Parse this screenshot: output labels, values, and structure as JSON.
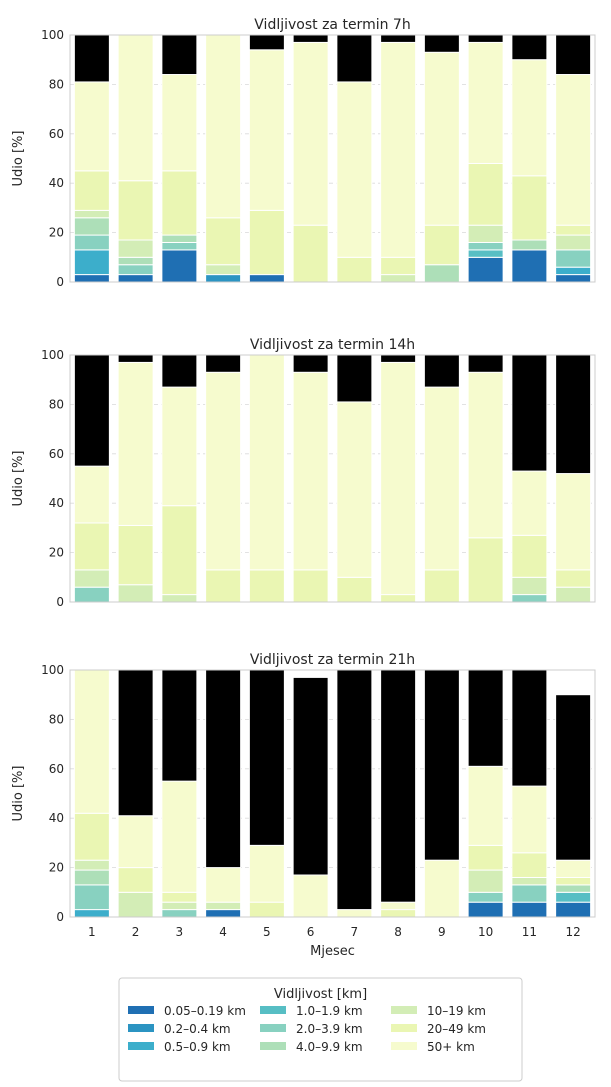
{
  "chart_data": {
    "type": "bar",
    "stacked": true,
    "xlabel": "Mjesec",
    "ylabel": "Udio [%]",
    "categories": [
      "1",
      "2",
      "3",
      "4",
      "5",
      "6",
      "7",
      "8",
      "9",
      "10",
      "11",
      "12"
    ],
    "ylim": [
      0,
      100
    ],
    "yticks": [
      0,
      20,
      40,
      60,
      80,
      100
    ],
    "grid": "horizontal dashed",
    "legend": {
      "title": "Vidljivost [km]",
      "placement": "bottom-center",
      "columns": 3,
      "entries": [
        "0.05–0.19 km",
        "0.2–0.4 km",
        "0.5–0.9 km",
        "1.0–1.9 km",
        "2.0–3.9 km",
        "4.0–9.9 km",
        "10–19 km",
        "20–49 km",
        "50+ km"
      ]
    },
    "colors": [
      "#1f6fb3",
      "#2b94c2",
      "#3caecb",
      "#57bec4",
      "#88d1c0",
      "#addfb8",
      "#d3edb6",
      "#eaf6b3",
      "#f6fbce"
    ],
    "panels": [
      {
        "title": "Vidljivost za termin 7h",
        "bounds": [
          [
            3,
            3,
            13,
            13,
            19,
            26,
            29,
            45,
            81,
            100
          ],
          [
            3,
            3,
            3,
            3,
            7,
            10,
            17,
            41,
            100,
            100
          ],
          [
            13,
            13,
            13,
            13,
            16,
            19,
            19,
            45,
            84,
            100
          ],
          [
            0,
            3,
            3,
            3,
            3,
            3,
            7,
            26,
            100,
            100
          ],
          [
            3,
            3,
            3,
            3,
            3,
            3,
            3,
            29,
            94,
            100
          ],
          [
            0,
            0,
            0,
            0,
            0,
            0,
            0,
            23,
            97,
            100
          ],
          [
            0,
            0,
            0,
            0,
            0,
            0,
            0,
            10,
            81,
            100
          ],
          [
            0,
            0,
            0,
            0,
            0,
            0,
            3,
            10,
            97,
            100
          ],
          [
            0,
            0,
            0,
            0,
            0,
            7,
            7,
            23,
            93,
            100
          ],
          [
            10,
            10,
            10,
            13,
            16,
            16,
            23,
            48,
            97,
            100
          ],
          [
            13,
            13,
            13,
            13,
            13,
            17,
            17,
            43,
            90,
            100
          ],
          [
            3,
            3,
            6,
            6,
            13,
            13,
            19,
            23,
            84,
            100
          ]
        ]
      },
      {
        "title": "Vidljivost za termin 14h",
        "bounds": [
          [
            0,
            0,
            0,
            0,
            6,
            6,
            13,
            32,
            55,
            100
          ],
          [
            0,
            0,
            0,
            0,
            0,
            0,
            7,
            31,
            97,
            100
          ],
          [
            0,
            0,
            0,
            0,
            0,
            0,
            3,
            39,
            87,
            100
          ],
          [
            0,
            0,
            0,
            0,
            0,
            0,
            0,
            13,
            93,
            100
          ],
          [
            0,
            0,
            0,
            0,
            0,
            0,
            0,
            13,
            100,
            100
          ],
          [
            0,
            0,
            0,
            0,
            0,
            0,
            0,
            13,
            93,
            100
          ],
          [
            0,
            0,
            0,
            0,
            0,
            0,
            0,
            10,
            81,
            100
          ],
          [
            0,
            0,
            0,
            0,
            0,
            0,
            0,
            3,
            97,
            100
          ],
          [
            0,
            0,
            0,
            0,
            0,
            0,
            0,
            13,
            87,
            100
          ],
          [
            0,
            0,
            0,
            0,
            0,
            0,
            0,
            26,
            93,
            100
          ],
          [
            0,
            0,
            0,
            0,
            3,
            3,
            10,
            27,
            53,
            100
          ],
          [
            0,
            0,
            0,
            0,
            0,
            0,
            6,
            13,
            52,
            100
          ]
        ]
      },
      {
        "title": "Vidljivost za termin 21h",
        "bounds": [
          [
            0,
            0,
            3,
            3,
            13,
            19,
            23,
            42,
            100,
            100
          ],
          [
            0,
            0,
            0,
            0,
            0,
            0,
            10,
            20,
            41,
            100
          ],
          [
            0,
            0,
            0,
            0,
            3,
            3,
            6,
            10,
            55,
            100
          ],
          [
            3,
            3,
            3,
            3,
            3,
            3,
            6,
            6,
            20,
            100
          ],
          [
            0,
            0,
            0,
            0,
            0,
            0,
            0,
            6,
            29,
            100
          ],
          [
            0,
            0,
            0,
            0,
            0,
            0,
            0,
            0,
            17,
            97
          ],
          [
            0,
            0,
            0,
            0,
            0,
            0,
            0,
            0,
            3,
            100
          ],
          [
            0,
            0,
            0,
            0,
            0,
            0,
            0,
            3,
            6,
            100
          ],
          [
            0,
            0,
            0,
            0,
            0,
            0,
            0,
            0,
            23,
            100
          ],
          [
            6,
            6,
            6,
            6,
            10,
            10,
            19,
            29,
            61,
            100
          ],
          [
            6,
            6,
            6,
            6,
            13,
            13,
            16,
            26,
            53,
            100
          ],
          [
            6,
            6,
            6,
            10,
            10,
            13,
            13,
            16,
            23,
            90
          ]
        ]
      }
    ]
  }
}
